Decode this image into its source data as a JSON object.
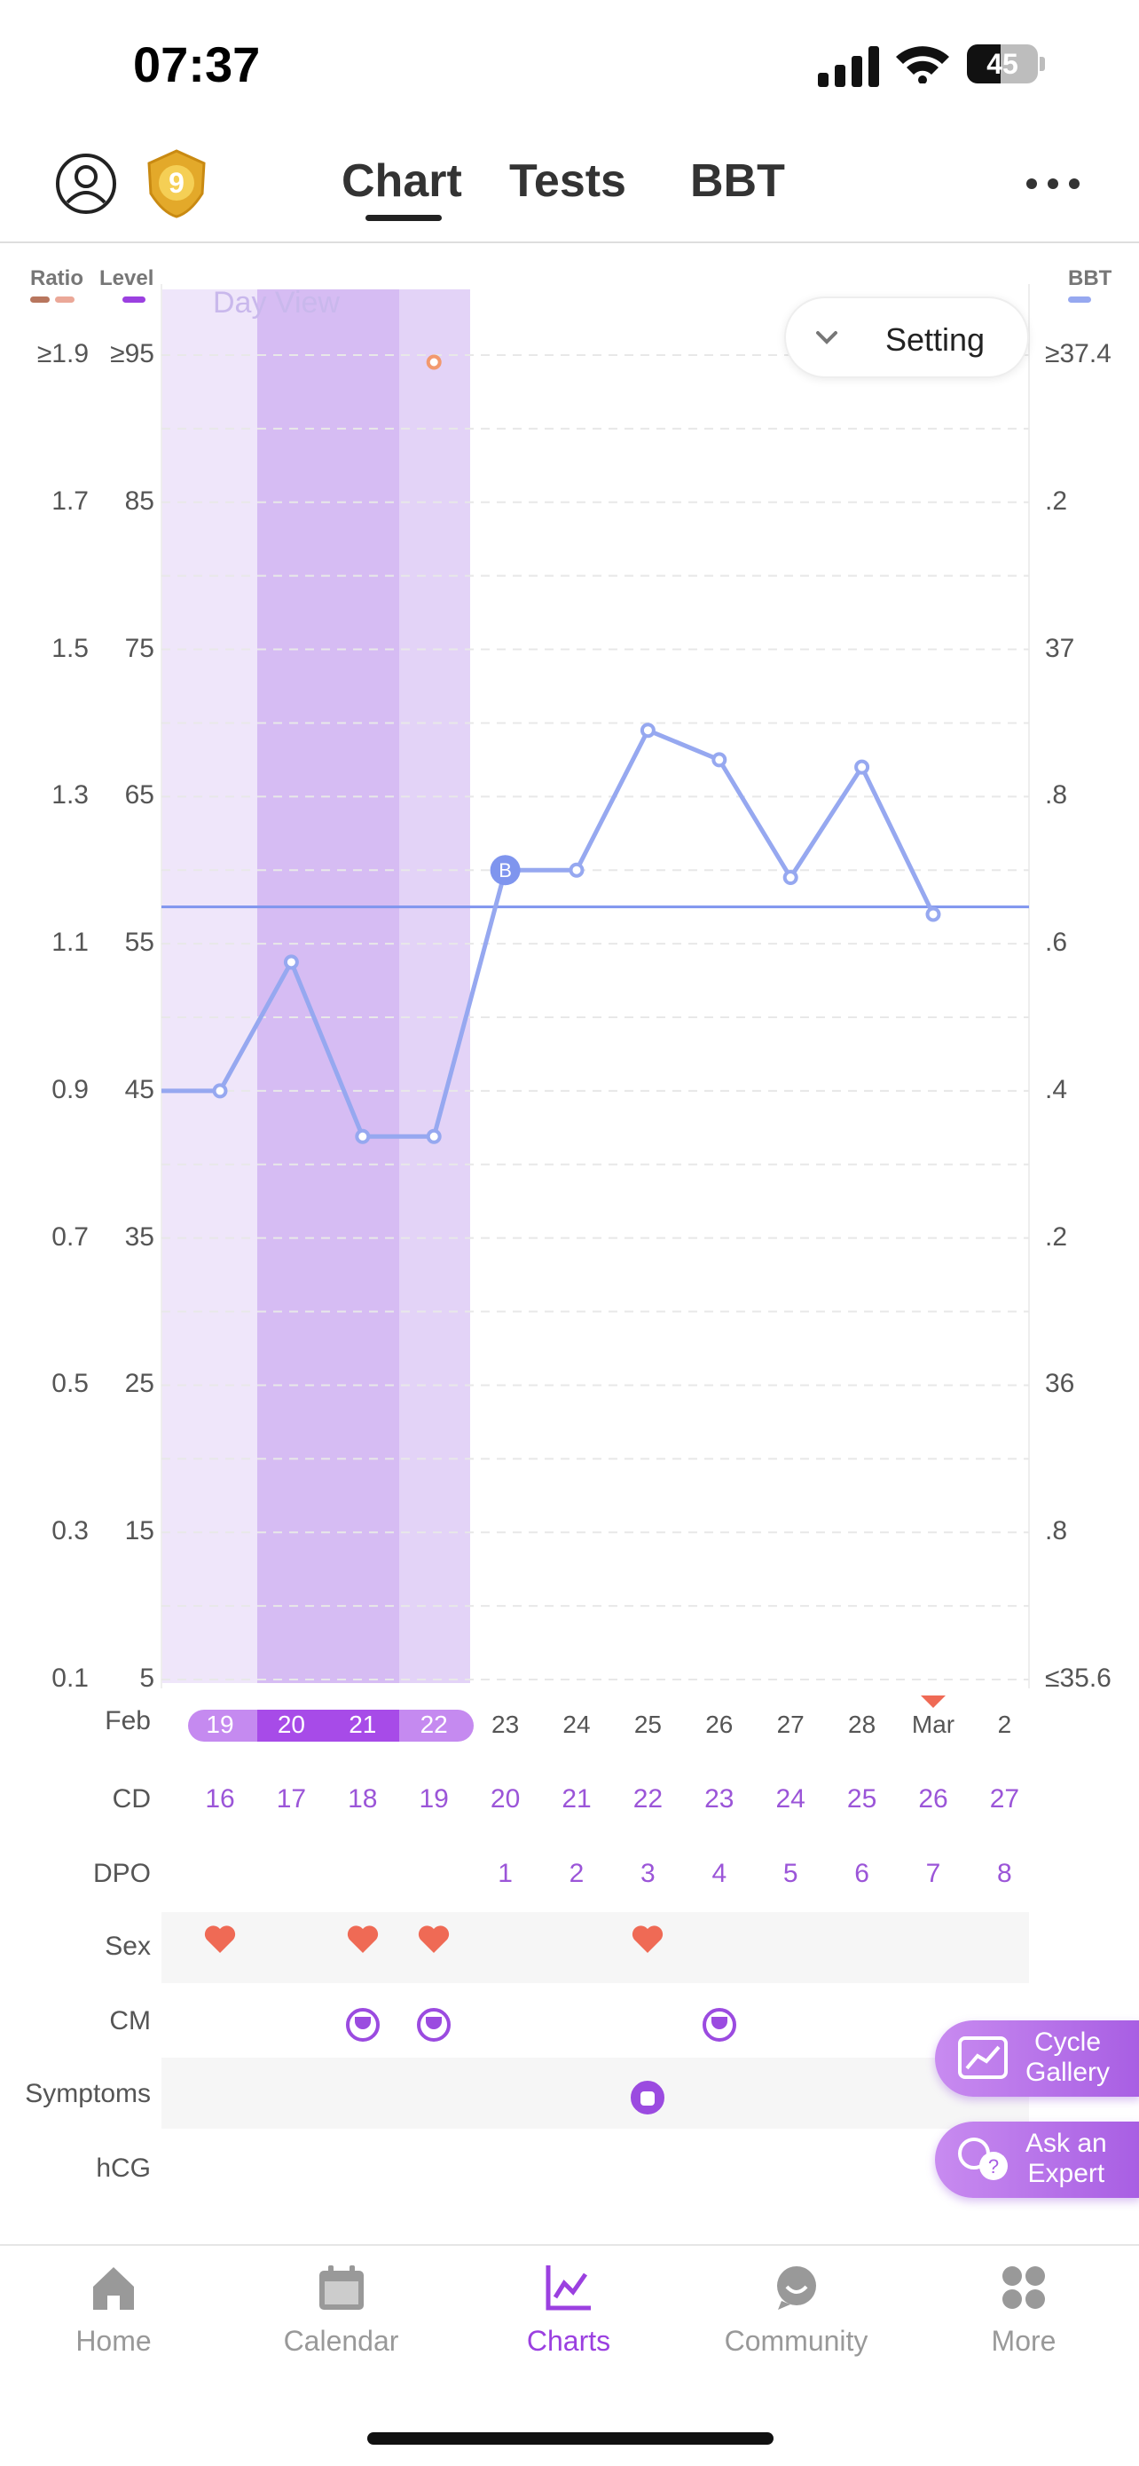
{
  "status_bar": {
    "time": "07:37",
    "battery": "45"
  },
  "nav": {
    "tabs": [
      {
        "label": "Chart"
      },
      {
        "label": "Tests"
      },
      {
        "label": "BBT"
      }
    ],
    "level_badge": "9"
  },
  "chart": {
    "left_heads": {
      "ratio": "Ratio",
      "level": "Level"
    },
    "right_head": "BBT",
    "ratio_ticks": [
      "≥1.9",
      "1.7",
      "1.5",
      "1.3",
      "1.1",
      "0.9",
      "0.7",
      "0.5",
      "0.3",
      "0.1"
    ],
    "level_ticks": [
      "≥95",
      "85",
      "75",
      "65",
      "55",
      "45",
      "35",
      "25",
      "15",
      "5"
    ],
    "bbt_ticks": [
      "≥37.4",
      ".2",
      "37",
      ".8",
      ".6",
      ".4",
      ".2",
      "36",
      ".8",
      "≤35.6"
    ],
    "day_view": "Day View",
    "setting": "Setting",
    "coverline_label": "B",
    "colors": {
      "line": "#96a8f0",
      "coverline": "#7f95ee",
      "fertile_light": "#efe6fa",
      "fertile_mid": "#e3d3f7",
      "fertile_dark": "#d6bcf3",
      "heart": "#ef6a55",
      "purple": "#9b40e0"
    }
  },
  "chart_data": {
    "type": "line",
    "x": [
      "Feb 19",
      "Feb 20",
      "Feb 21",
      "Feb 22",
      "Feb 23",
      "Feb 24",
      "Feb 25",
      "Feb 26",
      "Feb 27",
      "Feb 28",
      "Mar 1"
    ],
    "series": [
      {
        "values": [
          36.4,
          36.575,
          36.338,
          36.338,
          36.7,
          36.7,
          36.89,
          36.85,
          36.69,
          36.84,
          36.64
        ]
      }
    ],
    "coverline": 36.65,
    "y_right_range": [
      35.6,
      37.4
    ],
    "level_point": {
      "x": "Feb 22",
      "value": 95
    }
  },
  "rows": {
    "month_label": "Feb",
    "dates": [
      "19",
      "20",
      "21",
      "22",
      "23",
      "24",
      "25",
      "26",
      "27",
      "28",
      "Mar",
      "2"
    ],
    "cd_label": "CD",
    "cd": [
      "16",
      "17",
      "18",
      "19",
      "20",
      "21",
      "22",
      "23",
      "24",
      "25",
      "26",
      "27"
    ],
    "dpo_label": "DPO",
    "dpo": [
      "",
      "",
      "",
      "",
      "1",
      "2",
      "3",
      "4",
      "5",
      "6",
      "7",
      "8"
    ],
    "sex_label": "Sex",
    "cm_label": "CM",
    "symptoms_label": "Symptoms",
    "hcg_label": "hCG"
  },
  "fabs": {
    "gallery": [
      "Cycle",
      "Gallery"
    ],
    "expert": [
      "Ask an",
      "Expert"
    ]
  },
  "tabbar": [
    {
      "label": "Home",
      "icon": "home-icon"
    },
    {
      "label": "Calendar",
      "icon": "calendar-icon"
    },
    {
      "label": "Charts",
      "icon": "charts-icon"
    },
    {
      "label": "Community",
      "icon": "community-icon"
    },
    {
      "label": "More",
      "icon": "more-icon"
    }
  ]
}
